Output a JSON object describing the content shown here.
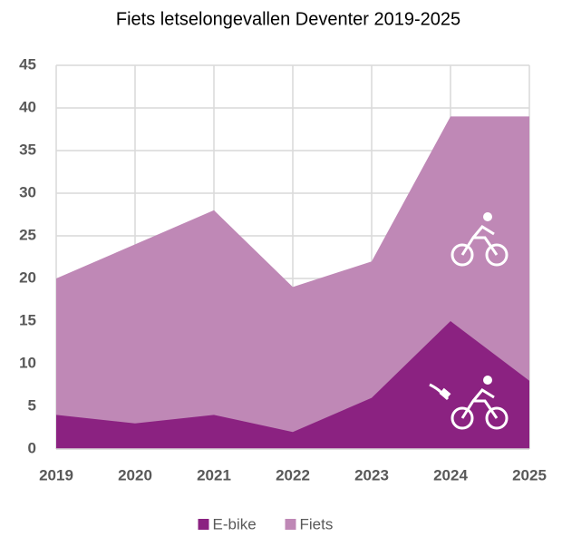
{
  "chart_data": {
    "type": "area",
    "title": "Fiets letselongevallen Deventer 2019-2025",
    "categories": [
      "2019",
      "2020",
      "2021",
      "2022",
      "2023",
      "2024",
      "2025"
    ],
    "series": [
      {
        "name": "E-bike",
        "color": "#8b2281",
        "values": [
          4,
          3,
          4,
          2,
          6,
          15,
          8
        ]
      },
      {
        "name": "Fiets",
        "color": "#bf88b6",
        "values": [
          20,
          24,
          28,
          19,
          22,
          39,
          39
        ]
      }
    ],
    "ylim": [
      0,
      45
    ],
    "yticks": [
      0,
      5,
      10,
      15,
      20,
      25,
      30,
      35,
      40,
      45
    ],
    "grid": true,
    "legend": "bottom"
  }
}
